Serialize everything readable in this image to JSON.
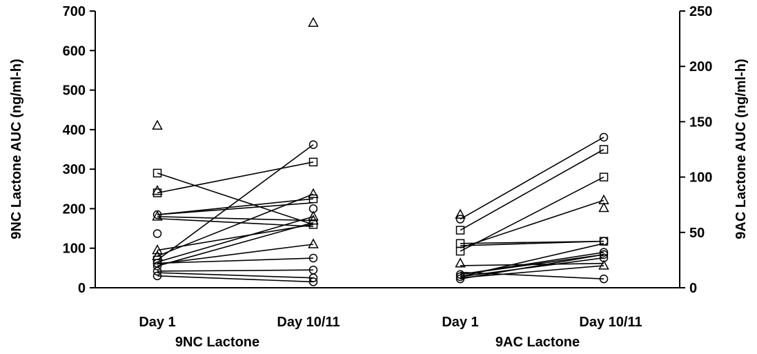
{
  "chart_data": {
    "type": "scatter",
    "title": "",
    "left_axis": {
      "label": "9NC Lactone AUC (ng/ml-h)",
      "min": 0,
      "max": 700,
      "ticks": [
        0,
        100,
        200,
        300,
        400,
        500,
        600,
        700
      ]
    },
    "right_axis": {
      "label": "9AC Lactone AUC (ng/ml-h)",
      "min": 0,
      "max": 250,
      "ticks": [
        0,
        50,
        100,
        150,
        200,
        250
      ]
    },
    "groups": [
      {
        "name": "9NC Lactone",
        "axis": "left",
        "days": [
          "Day 1",
          "Day 10/11"
        ],
        "paired_lines": [
          [
            290,
            160
          ],
          [
            240,
            318
          ],
          [
            185,
            215
          ],
          [
            180,
            170
          ],
          [
            175,
            155
          ],
          [
            185,
            225
          ],
          [
            95,
            160
          ],
          [
            80,
            237
          ],
          [
            70,
            362
          ],
          [
            65,
            180
          ],
          [
            60,
            110
          ],
          [
            62,
            75
          ],
          [
            55,
            165
          ],
          [
            42,
            45
          ],
          [
            38,
            25
          ],
          [
            30,
            15
          ]
        ],
        "unpaired_points": [
          {
            "day": 0,
            "value": 410,
            "shape": "triangle"
          },
          {
            "day": 0,
            "value": 245,
            "shape": "triangle"
          },
          {
            "day": 0,
            "value": 137,
            "shape": "circle"
          },
          {
            "day": 1,
            "value": 670,
            "shape": "triangle"
          },
          {
            "day": 1,
            "value": 200,
            "shape": "circle"
          }
        ],
        "markers": {
          "day1": [
            {
              "value": 290,
              "shape": "square"
            },
            {
              "value": 240,
              "shape": "square"
            },
            {
              "value": 185,
              "shape": "circle"
            },
            {
              "value": 180,
              "shape": "triangle"
            },
            {
              "value": 95,
              "shape": "triangle"
            },
            {
              "value": 80,
              "shape": "triangle"
            },
            {
              "value": 70,
              "shape": "square"
            },
            {
              "value": 62,
              "shape": "circle"
            },
            {
              "value": 55,
              "shape": "circle"
            },
            {
              "value": 42,
              "shape": "circle"
            },
            {
              "value": 30,
              "shape": "circle"
            }
          ],
          "day2": [
            {
              "value": 362,
              "shape": "circle"
            },
            {
              "value": 318,
              "shape": "square"
            },
            {
              "value": 237,
              "shape": "triangle"
            },
            {
              "value": 225,
              "shape": "square"
            },
            {
              "value": 160,
              "shape": "square"
            },
            {
              "value": 170,
              "shape": "triangle"
            },
            {
              "value": 180,
              "shape": "triangle"
            },
            {
              "value": 110,
              "shape": "triangle"
            },
            {
              "value": 75,
              "shape": "circle"
            },
            {
              "value": 45,
              "shape": "circle"
            },
            {
              "value": 25,
              "shape": "circle"
            },
            {
              "value": 15,
              "shape": "circle"
            }
          ]
        }
      },
      {
        "name": "9AC Lactone",
        "axis": "right",
        "days": [
          "Day 1",
          "Day 10/11"
        ],
        "paired_lines": [
          [
            62,
            136
          ],
          [
            52,
            125
          ],
          [
            40,
            42
          ],
          [
            38,
            42
          ],
          [
            33,
            100
          ],
          [
            36,
            79
          ],
          [
            20,
            22
          ],
          [
            12,
            30
          ],
          [
            12,
            32
          ],
          [
            10,
            27
          ],
          [
            10,
            40
          ],
          [
            9,
            20
          ],
          [
            8,
            30
          ],
          [
            14,
            8
          ]
        ],
        "unpaired_points": [
          {
            "day": 0,
            "value": 66,
            "shape": "triangle"
          },
          {
            "day": 1,
            "value": 72,
            "shape": "triangle"
          },
          {
            "day": 1,
            "value": 42,
            "shape": "circle"
          }
        ],
        "markers": {
          "day1": [
            {
              "value": 62,
              "shape": "circle"
            },
            {
              "value": 52,
              "shape": "square"
            },
            {
              "value": 40,
              "shape": "square"
            },
            {
              "value": 33,
              "shape": "square"
            },
            {
              "value": 22,
              "shape": "triangle"
            },
            {
              "value": 12,
              "shape": "circle"
            },
            {
              "value": 10,
              "shape": "circle"
            },
            {
              "value": 8,
              "shape": "circle"
            }
          ],
          "day2": [
            {
              "value": 136,
              "shape": "circle"
            },
            {
              "value": 125,
              "shape": "square"
            },
            {
              "value": 100,
              "shape": "square"
            },
            {
              "value": 79,
              "shape": "triangle"
            },
            {
              "value": 42,
              "shape": "square"
            },
            {
              "value": 32,
              "shape": "circle"
            },
            {
              "value": 30,
              "shape": "circle"
            },
            {
              "value": 27,
              "shape": "circle"
            },
            {
              "value": 20,
              "shape": "triangle"
            },
            {
              "value": 8,
              "shape": "circle"
            }
          ]
        }
      }
    ],
    "grid": false,
    "legend": "none"
  }
}
